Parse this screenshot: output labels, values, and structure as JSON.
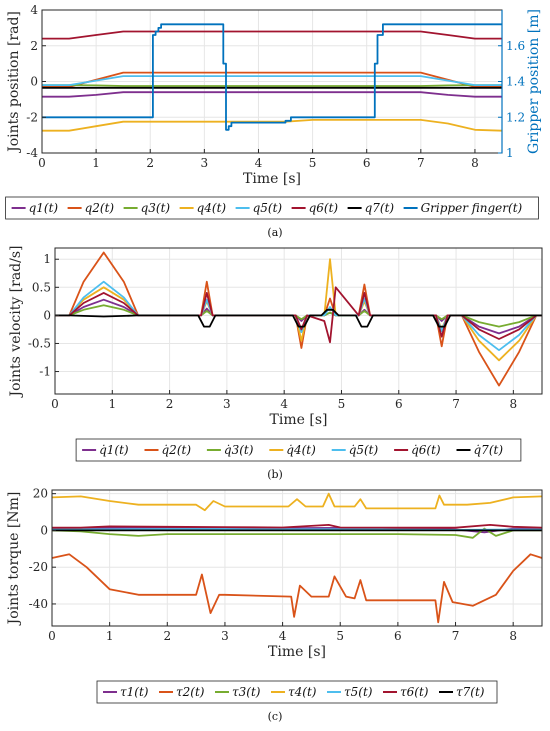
{
  "chart_data": [
    {
      "type": "line",
      "caption": "(a)",
      "xlabel": "Time [s]",
      "ylabel": "Joints position [rad]",
      "ylabel_right": "Gripper position [m]",
      "xlim": [
        0,
        8.5
      ],
      "ylim": [
        -4,
        4
      ],
      "ylim_right": [
        1.0,
        1.8
      ],
      "xticks": [
        "0",
        "1",
        "2",
        "3",
        "4",
        "5",
        "6",
        "7",
        "8"
      ],
      "yticks": [
        "-4",
        "-2",
        "0",
        "2",
        "4"
      ],
      "yticks_right": [
        "1",
        "1.2",
        "1.4",
        "1.6"
      ],
      "grid": true,
      "legend_position": "bottom",
      "series": [
        {
          "name": "q1(t)",
          "color": "#7e2f8e",
          "x": [
            0,
            0.5,
            1,
            1.5,
            7,
            7.5,
            8,
            8.5
          ],
          "y": [
            -0.85,
            -0.85,
            -0.75,
            -0.6,
            -0.6,
            -0.75,
            -0.85,
            -0.85
          ]
        },
        {
          "name": "q2(t)",
          "color": "#d95319",
          "x": [
            0,
            0.5,
            1,
            1.5,
            7,
            7.5,
            8,
            8.5
          ],
          "y": [
            -0.3,
            -0.3,
            0.1,
            0.5,
            0.5,
            0.1,
            -0.3,
            -0.3
          ]
        },
        {
          "name": "q3(t)",
          "color": "#77ac30",
          "x": [
            0,
            0.5,
            1,
            1.5,
            7,
            7.5,
            8,
            8.5
          ],
          "y": [
            -0.2,
            -0.2,
            -0.22,
            -0.25,
            -0.25,
            -0.22,
            -0.2,
            -0.2
          ]
        },
        {
          "name": "q4(t)",
          "color": "#edb120",
          "x": [
            0,
            0.5,
            1,
            1.5,
            4.5,
            5,
            7,
            7.5,
            8,
            8.5
          ],
          "y": [
            -2.75,
            -2.75,
            -2.5,
            -2.25,
            -2.25,
            -2.15,
            -2.15,
            -2.35,
            -2.7,
            -2.75
          ]
        },
        {
          "name": "q5(t)",
          "color": "#4dbeee",
          "x": [
            0,
            0.5,
            1,
            1.5,
            7,
            7.5,
            8,
            8.5
          ],
          "y": [
            -0.2,
            -0.2,
            0.05,
            0.3,
            0.3,
            0.05,
            -0.2,
            -0.2
          ]
        },
        {
          "name": "q6(t)",
          "color": "#a2142f",
          "x": [
            0,
            0.5,
            1,
            1.5,
            7,
            7.5,
            8,
            8.5
          ],
          "y": [
            2.4,
            2.4,
            2.6,
            2.8,
            2.8,
            2.6,
            2.4,
            2.4
          ]
        },
        {
          "name": "q7(t)",
          "color": "#000000",
          "x": [
            0,
            8.5
          ],
          "y": [
            -0.35,
            -0.35
          ]
        },
        {
          "name": "Gripper finger(t)",
          "color": "#0072bd",
          "axis": "right",
          "x": [
            0,
            2.05,
            2.05,
            2.1,
            2.1,
            2.15,
            2.15,
            2.2,
            2.2,
            3.35,
            3.35,
            3.4,
            3.4,
            3.45,
            3.45,
            3.5,
            3.5,
            4.5,
            4.5,
            4.6,
            4.6,
            6.15,
            6.15,
            6.2,
            6.2,
            6.3,
            6.3,
            8.5
          ],
          "y": [
            1.2,
            1.2,
            1.66,
            1.66,
            1.68,
            1.68,
            1.7,
            1.7,
            1.72,
            1.72,
            1.5,
            1.5,
            1.13,
            1.13,
            1.15,
            1.15,
            1.17,
            1.17,
            1.18,
            1.18,
            1.2,
            1.2,
            1.5,
            1.5,
            1.66,
            1.66,
            1.72,
            1.72
          ]
        }
      ]
    },
    {
      "type": "line",
      "caption": "(b)",
      "xlabel": "Time [s]",
      "ylabel": "Joints velocity [rad/s]",
      "xlim": [
        0,
        8.5
      ],
      "ylim": [
        -1.4,
        1.2
      ],
      "xticks": [
        "0",
        "1",
        "2",
        "3",
        "4",
        "5",
        "6",
        "7",
        "8"
      ],
      "yticks": [
        "-1",
        "-0.5",
        "0",
        "0.5",
        "1"
      ],
      "grid": true,
      "legend_position": "bottom",
      "series": [
        {
          "name": "q̇1(t)",
          "color": "#7e2f8e",
          "x": [
            0,
            0.25,
            0.5,
            0.85,
            1.2,
            1.45,
            2.55,
            2.65,
            2.75,
            4.2,
            4.3,
            4.4,
            4.7,
            4.8,
            4.9,
            5.3,
            5.4,
            5.5,
            6.65,
            6.75,
            6.85,
            7.1,
            7.4,
            7.75,
            8.1,
            8.4,
            8.5
          ],
          "y": [
            0,
            0,
            0.15,
            0.28,
            0.15,
            0,
            0,
            0.12,
            0,
            0,
            -0.1,
            0,
            0,
            0.05,
            0,
            0,
            0.1,
            0,
            0,
            -0.1,
            0,
            0,
            -0.2,
            -0.32,
            -0.2,
            0,
            0
          ]
        },
        {
          "name": "q̇2(t)",
          "color": "#d95319",
          "x": [
            0,
            0.25,
            0.5,
            0.85,
            1.2,
            1.45,
            2.55,
            2.65,
            2.75,
            4.2,
            4.3,
            4.4,
            4.7,
            4.8,
            4.9,
            5.3,
            5.4,
            5.5,
            6.65,
            6.75,
            6.85,
            7.1,
            7.4,
            7.75,
            8.1,
            8.4,
            8.5
          ],
          "y": [
            0,
            0,
            0.6,
            1.12,
            0.6,
            0,
            0,
            0.6,
            0,
            0,
            -0.58,
            0,
            0,
            0.3,
            0,
            0,
            0.55,
            0,
            0,
            -0.55,
            0,
            0,
            -0.65,
            -1.25,
            -0.65,
            0,
            0
          ]
        },
        {
          "name": "q̇3(t)",
          "color": "#77ac30",
          "x": [
            0,
            0.25,
            0.5,
            0.85,
            1.2,
            1.45,
            2.55,
            2.65,
            2.75,
            4.2,
            4.3,
            4.4,
            4.7,
            4.8,
            4.9,
            5.3,
            5.4,
            5.5,
            6.65,
            6.75,
            6.85,
            7.1,
            7.4,
            7.75,
            8.1,
            8.4,
            8.5
          ],
          "y": [
            0,
            0,
            0.1,
            0.18,
            0.1,
            0,
            0,
            0.08,
            0,
            0,
            -0.07,
            0,
            0,
            0.05,
            0,
            0,
            0.08,
            0,
            0,
            -0.07,
            0,
            0,
            -0.12,
            -0.2,
            -0.12,
            0,
            0
          ]
        },
        {
          "name": "q̇4(t)",
          "color": "#edb120",
          "x": [
            0,
            0.25,
            0.5,
            0.85,
            1.2,
            1.45,
            2.55,
            2.65,
            2.75,
            4.2,
            4.3,
            4.4,
            4.7,
            4.8,
            4.9,
            5.3,
            5.4,
            5.5,
            6.65,
            6.75,
            6.85,
            7.1,
            7.4,
            7.75,
            8.1,
            8.4,
            8.5
          ],
          "y": [
            0,
            0,
            0.28,
            0.5,
            0.28,
            0,
            0,
            0.25,
            0,
            0,
            -0.45,
            0,
            0,
            1.0,
            0,
            0,
            0.25,
            0,
            0,
            -0.25,
            0,
            0,
            -0.45,
            -0.8,
            -0.45,
            0,
            0
          ]
        },
        {
          "name": "q̇5(t)",
          "color": "#4dbeee",
          "x": [
            0,
            0.25,
            0.5,
            0.85,
            1.2,
            1.45,
            2.55,
            2.65,
            2.75,
            4.2,
            4.3,
            4.4,
            4.7,
            4.8,
            4.9,
            5.3,
            5.4,
            5.5,
            6.65,
            6.75,
            6.85,
            7.1,
            7.4,
            7.75,
            8.1,
            8.4,
            8.5
          ],
          "y": [
            0,
            0,
            0.32,
            0.6,
            0.32,
            0,
            0,
            0.28,
            0,
            0,
            -0.3,
            0,
            0,
            0.15,
            0,
            0,
            0.3,
            0,
            0,
            -0.28,
            0,
            0,
            -0.35,
            -0.62,
            -0.35,
            0,
            0
          ]
        },
        {
          "name": "q̇6(t)",
          "color": "#a2142f",
          "x": [
            0,
            0.25,
            0.5,
            0.85,
            1.2,
            1.45,
            2.55,
            2.65,
            2.75,
            4.2,
            4.3,
            4.4,
            4.7,
            4.8,
            4.9,
            5.3,
            5.4,
            5.5,
            6.65,
            6.75,
            6.85,
            7.1,
            7.4,
            7.75,
            8.1,
            8.4,
            8.5
          ],
          "y": [
            0,
            0,
            0.22,
            0.4,
            0.22,
            0,
            0,
            0.4,
            0,
            0,
            -0.25,
            0,
            -0.1,
            -0.48,
            0.5,
            0,
            0.4,
            0,
            0,
            -0.38,
            0,
            0,
            -0.25,
            -0.42,
            -0.25,
            0,
            0
          ]
        },
        {
          "name": "q̇7(t)",
          "color": "#000000",
          "x": [
            0,
            0.25,
            0.5,
            0.85,
            1.2,
            1.45,
            2.5,
            2.6,
            2.7,
            2.8,
            4.15,
            4.25,
            4.35,
            4.45,
            4.65,
            4.75,
            4.85,
            4.95,
            5.25,
            5.35,
            5.45,
            5.55,
            6.6,
            6.7,
            6.8,
            6.9,
            8.5
          ],
          "y": [
            0,
            0,
            -0.01,
            -0.02,
            -0.01,
            0,
            0,
            -0.2,
            -0.2,
            0,
            0,
            -0.2,
            -0.2,
            0,
            0,
            0.1,
            0.1,
            0,
            0,
            -0.2,
            -0.2,
            0,
            0,
            -0.2,
            -0.2,
            0,
            0
          ]
        }
      ]
    },
    {
      "type": "line",
      "caption": "(c)",
      "xlabel": "Time [s]",
      "ylabel": "Joints torque [Nm]",
      "xlim": [
        0,
        8.5
      ],
      "ylim": [
        -52,
        22
      ],
      "xticks": [
        "0",
        "1",
        "2",
        "3",
        "4",
        "5",
        "6",
        "7",
        "8"
      ],
      "yticks": [
        "-40",
        "-20",
        "0",
        "20"
      ],
      "grid": true,
      "legend_position": "bottom",
      "series": [
        {
          "name": "τ1(t)",
          "color": "#7e2f8e",
          "x": [
            0,
            1,
            2,
            3,
            4,
            5,
            6,
            7,
            7.5,
            8,
            8.5
          ],
          "y": [
            1,
            1.5,
            1.5,
            1.2,
            1.2,
            1.4,
            1.2,
            0.5,
            -1,
            1,
            1
          ]
        },
        {
          "name": "τ2(t)",
          "color": "#d95319",
          "x": [
            0,
            0.3,
            0.6,
            1,
            1.5,
            2.5,
            2.6,
            2.75,
            2.9,
            3.0,
            4.15,
            4.2,
            4.3,
            4.5,
            4.8,
            4.9,
            5.1,
            5.25,
            5.35,
            5.45,
            6.65,
            6.7,
            6.8,
            6.95,
            7.3,
            7.7,
            8,
            8.3,
            8.5
          ],
          "y": [
            -15,
            -13,
            -20,
            -32,
            -35,
            -35,
            -24,
            -45,
            -35,
            -35,
            -36,
            -47,
            -30,
            -36,
            -36,
            -25,
            -36,
            -37,
            -27,
            -38,
            -38,
            -50,
            -28,
            -39,
            -41,
            -35,
            -22,
            -13,
            -15
          ]
        },
        {
          "name": "τ3(t)",
          "color": "#77ac30",
          "x": [
            0,
            0.5,
            1,
            1.5,
            2,
            3,
            4,
            5,
            6,
            7,
            7.3,
            7.5,
            7.7,
            8,
            8.5
          ],
          "y": [
            0,
            -0.5,
            -2,
            -3,
            -2,
            -2,
            -2,
            -2,
            -2,
            -2.5,
            -4,
            1,
            -3,
            0,
            0
          ]
        },
        {
          "name": "τ4(t)",
          "color": "#edb120",
          "x": [
            0,
            0.5,
            1,
            1.5,
            2.5,
            2.65,
            2.8,
            3,
            4.1,
            4.25,
            4.4,
            4.7,
            4.8,
            4.9,
            5.25,
            5.35,
            5.45,
            6.65,
            6.72,
            6.8,
            7.2,
            7.6,
            8,
            8.5
          ],
          "y": [
            18,
            18.5,
            16,
            14,
            14,
            11,
            16,
            13,
            13,
            17,
            13,
            13,
            20,
            13,
            13,
            17,
            12,
            12,
            19,
            14,
            14,
            15,
            18,
            18.5
          ]
        },
        {
          "name": "τ5(t)",
          "color": "#4dbeee",
          "x": [
            0,
            1,
            2,
            3,
            4,
            5,
            6,
            7,
            8,
            8.5
          ],
          "y": [
            0.5,
            0.6,
            0.8,
            0.8,
            0.6,
            0.6,
            0.5,
            0.3,
            0.5,
            0.5
          ]
        },
        {
          "name": "τ6(t)",
          "color": "#a2142f",
          "x": [
            0,
            0.5,
            1,
            2,
            3,
            4,
            4.8,
            5,
            6,
            7,
            7.6,
            8,
            8.5
          ],
          "y": [
            1.5,
            1.5,
            2.2,
            2,
            1.8,
            1.6,
            3,
            1.6,
            1.5,
            1.5,
            3,
            2,
            1.5
          ]
        },
        {
          "name": "τ7(t)",
          "color": "#000000",
          "x": [
            0,
            8.5
          ],
          "y": [
            0,
            0
          ]
        }
      ]
    }
  ]
}
